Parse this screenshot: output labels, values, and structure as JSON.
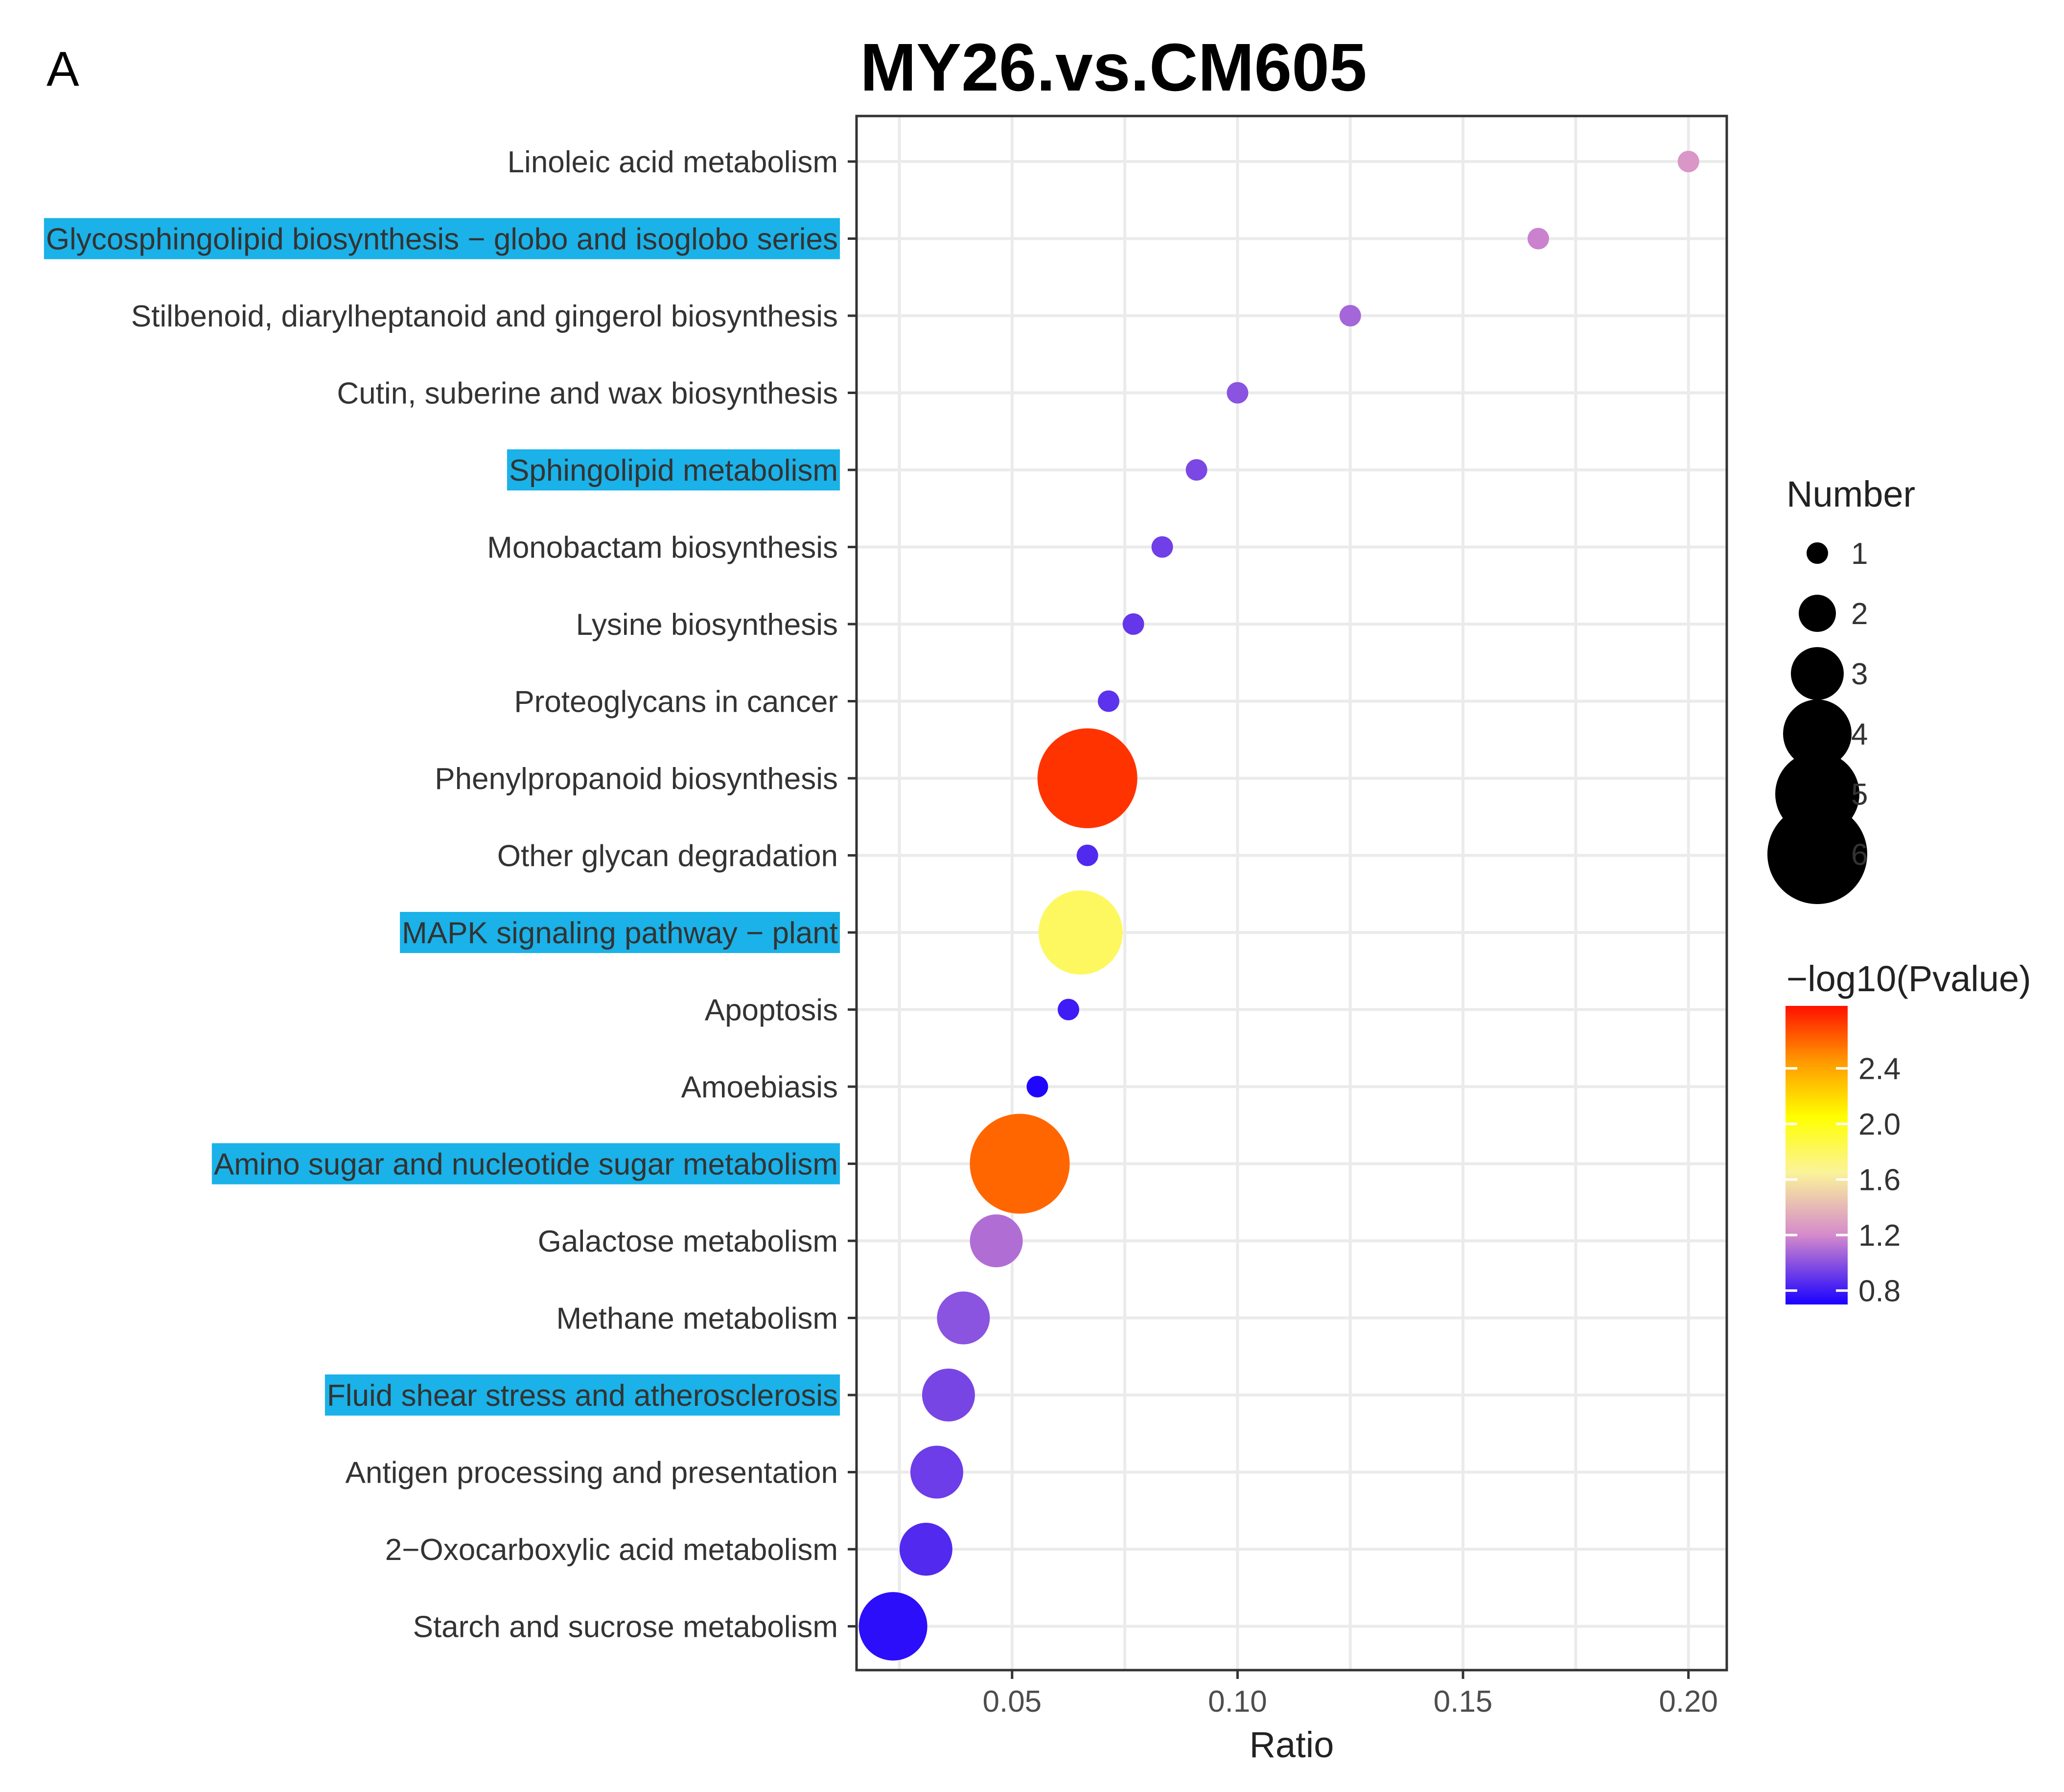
{
  "panel_letter": "A",
  "chart_data": {
    "type": "scatter",
    "title": "MY26.vs.CM605",
    "xlabel": "Ratio",
    "ylabel": "",
    "xlim": [
      0.0155,
      0.2085
    ],
    "x_ticks": [
      "0.05",
      "0.10",
      "0.15",
      "0.20"
    ],
    "categories": [
      "Linoleic acid metabolism",
      "Glycosphingolipid biosynthesis − globo and isoglobo series",
      "Stilbenoid, diarylheptanoid and gingerol biosynthesis",
      "Cutin, suberine and wax biosynthesis",
      "Sphingolipid metabolism",
      "Monobactam biosynthesis",
      "Lysine biosynthesis",
      "Proteoglycans in cancer",
      "Phenylpropanoid biosynthesis",
      "Other glycan degradation",
      "MAPK signaling pathway − plant",
      "Apoptosis",
      "Amoebiasis",
      "Amino sugar and nucleotide sugar metabolism",
      "Galactose metabolism",
      "Methane metabolism",
      "Fluid shear stress and atherosclerosis",
      "Antigen processing and presentation",
      "2−Oxocarboxylic acid metabolism",
      "Starch and sucrose metabolism"
    ],
    "highlighted": [
      "Glycosphingolipid biosynthesis − globo and isoglobo series",
      "Sphingolipid metabolism",
      "MAPK signaling pathway − plant",
      "Amino sugar and nucleotide sugar metabolism",
      "Fluid shear stress and atherosclerosis"
    ],
    "highlight_color": "#1ab2e8",
    "points": [
      {
        "pathway": "Linoleic acid metabolism",
        "ratio": 0.2,
        "number": 1,
        "neglog10p": 1.25
      },
      {
        "pathway": "Glycosphingolipid biosynthesis − globo and isoglobo series",
        "ratio": 0.1667,
        "number": 1,
        "neglog10p": 1.17
      },
      {
        "pathway": "Stilbenoid, diarylheptanoid and gingerol biosynthesis",
        "ratio": 0.125,
        "number": 1,
        "neglog10p": 1.07
      },
      {
        "pathway": "Cutin, suberine and wax biosynthesis",
        "ratio": 0.1,
        "number": 1,
        "neglog10p": 1.0
      },
      {
        "pathway": "Sphingolipid metabolism",
        "ratio": 0.0909,
        "number": 1,
        "neglog10p": 0.96
      },
      {
        "pathway": "Monobactam biosynthesis",
        "ratio": 0.0833,
        "number": 1,
        "neglog10p": 0.93
      },
      {
        "pathway": "Lysine biosynthesis",
        "ratio": 0.0769,
        "number": 1,
        "neglog10p": 0.9
      },
      {
        "pathway": "Proteoglycans in cancer",
        "ratio": 0.0714,
        "number": 1,
        "neglog10p": 0.88
      },
      {
        "pathway": "Phenylpropanoid biosynthesis",
        "ratio": 0.0667,
        "number": 6,
        "neglog10p": 2.75
      },
      {
        "pathway": "Other glycan degradation",
        "ratio": 0.0667,
        "number": 1,
        "neglog10p": 0.85
      },
      {
        "pathway": "MAPK signaling pathway − plant",
        "ratio": 0.0652,
        "number": 5,
        "neglog10p": 1.8
      },
      {
        "pathway": "Apoptosis",
        "ratio": 0.0625,
        "number": 1,
        "neglog10p": 0.8
      },
      {
        "pathway": "Amoebiasis",
        "ratio": 0.0556,
        "number": 1,
        "neglog10p": 0.72
      },
      {
        "pathway": "Amino sugar and nucleotide sugar metabolism",
        "ratio": 0.0517,
        "number": 6,
        "neglog10p": 2.6
      },
      {
        "pathway": "Galactose metabolism",
        "ratio": 0.0465,
        "number": 3,
        "neglog10p": 1.1
      },
      {
        "pathway": "Methane metabolism",
        "ratio": 0.0392,
        "number": 3,
        "neglog10p": 1.0
      },
      {
        "pathway": "Fluid shear stress and atherosclerosis",
        "ratio": 0.0359,
        "number": 3,
        "neglog10p": 0.95
      },
      {
        "pathway": "Antigen processing and presentation",
        "ratio": 0.0333,
        "number": 3,
        "neglog10p": 0.92
      },
      {
        "pathway": "2−Oxocarboxylic acid metabolism",
        "ratio": 0.0309,
        "number": 3,
        "neglog10p": 0.85
      },
      {
        "pathway": "Starch and sucrose metabolism",
        "ratio": 0.0236,
        "number": 4,
        "neglog10p": 0.75
      }
    ],
    "size_legend": {
      "title": "Number",
      "values": [
        1,
        2,
        3,
        4,
        5,
        6
      ],
      "labels": [
        "1",
        "2",
        "3",
        "4",
        "5",
        "6"
      ]
    },
    "color_legend": {
      "title": "−log10(Pvalue)",
      "range": [
        0.7,
        2.85
      ],
      "ticks": [
        0.8,
        1.2,
        1.6,
        2.0,
        2.4
      ],
      "tick_labels": [
        "0.8",
        "1.2",
        "1.6",
        "2.0",
        "2.4"
      ],
      "stops": [
        {
          "value": 0.7,
          "color": "#1a00ff"
        },
        {
          "value": 1.2,
          "color": "#d58acb"
        },
        {
          "value": 1.65,
          "color": "#fbf39a"
        },
        {
          "value": 2.05,
          "color": "#ffff00"
        },
        {
          "value": 2.45,
          "color": "#ff9900"
        },
        {
          "value": 2.85,
          "color": "#ff1100"
        }
      ]
    }
  }
}
